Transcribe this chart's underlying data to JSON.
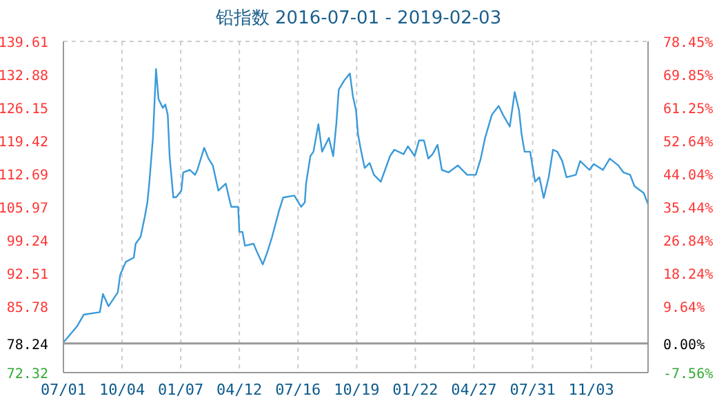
{
  "chart_data": {
    "type": "line",
    "title": "铅指数 2016-07-01 - 2019-02-03",
    "x": [
      "2016-07-02",
      "2016-07-23",
      "2016-08-03",
      "2016-08-29",
      "2016-09-03",
      "2016-09-12",
      "2016-09-27",
      "2016-10-01",
      "2016-10-10",
      "2016-10-23",
      "2016-10-26",
      "2016-11-03",
      "2016-11-10",
      "2016-11-14",
      "2016-11-17",
      "2016-11-23",
      "2016-11-28",
      "2016-12-02",
      "2016-12-09",
      "2016-12-13",
      "2016-12-17",
      "2016-12-20",
      "2016-12-26",
      "2016-12-31",
      "2017-01-08",
      "2017-01-11",
      "2017-01-22",
      "2017-01-30",
      "2017-02-03",
      "2017-02-14",
      "2017-02-21",
      "2017-02-28",
      "2017-03-09",
      "2017-03-21",
      "2017-03-28",
      "2017-03-30",
      "2017-04-10",
      "2017-04-12",
      "2017-04-17",
      "2017-04-21",
      "2017-05-05",
      "2017-05-11",
      "2017-05-20",
      "2017-05-27",
      "2017-06-04",
      "2017-06-15",
      "2017-06-22",
      "2017-07-10",
      "2017-07-21",
      "2017-07-27",
      "2017-07-29",
      "2017-08-05",
      "2017-08-10",
      "2017-08-18",
      "2017-08-24",
      "2017-09-04",
      "2017-09-11",
      "2017-09-16",
      "2017-09-20",
      "2017-09-29",
      "2017-10-08",
      "2017-10-13",
      "2017-10-18",
      "2017-10-21",
      "2017-10-25",
      "2017-11-01",
      "2017-11-09",
      "2017-11-16",
      "2017-11-27",
      "2017-12-04",
      "2017-12-12",
      "2017-12-19",
      "2018-01-03",
      "2018-01-10",
      "2018-01-21",
      "2018-01-28",
      "2018-02-05",
      "2018-02-12",
      "2018-02-19",
      "2018-02-27",
      "2018-03-06",
      "2018-03-17",
      "2018-04-01",
      "2018-04-16",
      "2018-04-30",
      "2018-05-08",
      "2018-05-15",
      "2018-05-26",
      "2018-06-06",
      "2018-06-13",
      "2018-06-24",
      "2018-07-02",
      "2018-07-09",
      "2018-07-13",
      "2018-07-18",
      "2018-07-27",
      "2018-08-04",
      "2018-08-11",
      "2018-08-18",
      "2018-08-26",
      "2018-09-02",
      "2018-09-09",
      "2018-09-17",
      "2018-09-24",
      "2018-10-09",
      "2018-10-16",
      "2018-10-31",
      "2018-11-07",
      "2018-11-22",
      "2018-12-03",
      "2018-12-17",
      "2018-12-25",
      "2019-01-05",
      "2019-01-12",
      "2019-01-27",
      "2019-02-03"
    ],
    "series": [
      {
        "color": "#3a9ad9",
        "values": [
          78.6,
          81.7,
          84.1,
          84.6,
          88.3,
          85.8,
          88.6,
          92.2,
          94.8,
          95.7,
          98.5,
          99.9,
          104.1,
          106.9,
          110.7,
          120,
          134,
          127.9,
          126.1,
          126.8,
          124.7,
          116.3,
          107.9,
          108,
          109.3,
          113,
          113.5,
          112.5,
          113.5,
          118,
          115.8,
          114.4,
          109.3,
          110.7,
          106.9,
          106,
          106,
          100.9,
          100.9,
          98.1,
          98.5,
          96.7,
          94.3,
          96.7,
          99.9,
          105.1,
          107.9,
          108.3,
          106,
          106.9,
          110.7,
          116.3,
          117.2,
          122.8,
          117.2,
          120,
          116.3,
          122.8,
          129.8,
          131.7,
          133.1,
          128.4,
          125.6,
          120.9,
          118.1,
          113.9,
          114.9,
          112.5,
          111.1,
          113.5,
          116.3,
          117.6,
          116.7,
          118.3,
          116.3,
          119.5,
          119.5,
          115.8,
          116.7,
          118.6,
          113.5,
          113,
          114.4,
          112.5,
          112.5,
          115.8,
          120,
          124.7,
          126.5,
          124.7,
          122.3,
          129.3,
          125.6,
          120.9,
          117.2,
          117.2,
          111.1,
          112,
          107.8,
          112,
          117.6,
          117.2,
          115.3,
          112,
          112.5,
          115.3,
          113.5,
          114.7,
          113.5,
          115.8,
          114.4,
          113,
          112.5,
          110.2,
          108.8,
          106.5
        ]
      }
    ],
    "xlim": [
      "2016-07-01",
      "2019-02-03"
    ],
    "xticks": [
      {
        "value": "2016-07-01",
        "label": "07/01"
      },
      {
        "value": "2016-10-04",
        "label": "10/04"
      },
      {
        "value": "2017-01-07",
        "label": "01/07"
      },
      {
        "value": "2017-04-12",
        "label": "04/12"
      },
      {
        "value": "2017-07-16",
        "label": "07/16"
      },
      {
        "value": "2017-10-19",
        "label": "10/19"
      },
      {
        "value": "2018-01-22",
        "label": "01/22"
      },
      {
        "value": "2018-04-27",
        "label": "04/27"
      },
      {
        "value": "2018-07-31",
        "label": "07/31"
      },
      {
        "value": "2018-11-03",
        "label": "11/03"
      }
    ],
    "ylim": [
      72.32,
      139.61
    ],
    "yticks": [
      72.32,
      78.24,
      85.78,
      92.51,
      99.24,
      105.97,
      112.69,
      119.42,
      126.15,
      132.88,
      139.61
    ],
    "y2lim": [
      -7.56,
      78.45
    ],
    "y2ticks": [
      {
        "value": -7.56,
        "label": "-7.56%"
      },
      {
        "value": 0,
        "label": "0.00%"
      },
      {
        "value": 9.64,
        "label": "9.64%"
      },
      {
        "value": 18.24,
        "label": "18.24%"
      },
      {
        "value": 26.84,
        "label": "26.84%"
      },
      {
        "value": 35.44,
        "label": "35.44%"
      },
      {
        "value": 44.04,
        "label": "44.04%"
      },
      {
        "value": 52.64,
        "label": "52.64%"
      },
      {
        "value": 61.25,
        "label": "61.25%"
      },
      {
        "value": 69.85,
        "label": "69.85%"
      },
      {
        "value": 78.45,
        "label": "78.45%"
      }
    ],
    "ref_lines": [
      {
        "axis": "y",
        "value": 78.24,
        "color": "#999999"
      }
    ],
    "grid": true,
    "legend": false,
    "marker": "none",
    "line_style": "solid"
  }
}
